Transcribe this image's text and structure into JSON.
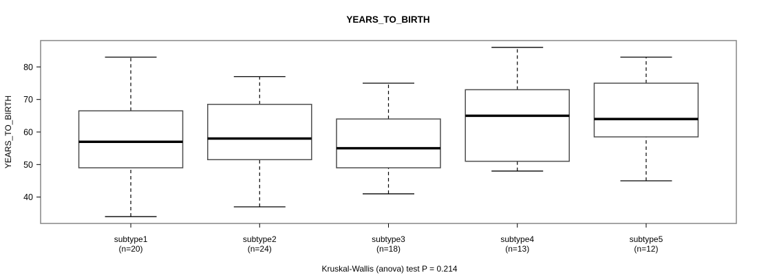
{
  "title": "YEARS_TO_BIRTH",
  "y_axis": {
    "label": "YEARS_TO_BIRTH",
    "tick_labels": [
      "40",
      "50",
      "60",
      "70",
      "80"
    ]
  },
  "caption": "Kruskal-Wallis (anova) test P = 0.214",
  "colors": {
    "frame": "#858585",
    "box_stroke": "#4d4d4d",
    "box_fill": "#ffffff",
    "whisker": "#000000",
    "median": "#000000",
    "text": "#000000",
    "background": "#ffffff"
  },
  "chart_data": {
    "type": "boxplot",
    "title": "YEARS_TO_BIRTH",
    "xlabel": "",
    "ylabel": "YEARS_TO_BIRTH",
    "categories": [
      "subtype1",
      "subtype2",
      "subtype3",
      "subtype4",
      "subtype5"
    ],
    "category_sublabels": [
      "(n=20)",
      "(n=24)",
      "(n=18)",
      "(n=13)",
      "(n=12)"
    ],
    "sample_sizes": [
      20,
      24,
      18,
      13,
      12
    ],
    "boxes": [
      {
        "name": "subtype1",
        "n": 20,
        "whisker_low": 34,
        "q1": 49,
        "median": 57,
        "q3": 66.5,
        "whisker_high": 83
      },
      {
        "name": "subtype2",
        "n": 24,
        "whisker_low": 37,
        "q1": 51.5,
        "median": 58,
        "q3": 68.5,
        "whisker_high": 77
      },
      {
        "name": "subtype3",
        "n": 18,
        "whisker_low": 41,
        "q1": 49,
        "median": 55,
        "q3": 64,
        "whisker_high": 75
      },
      {
        "name": "subtype4",
        "n": 13,
        "whisker_low": 48,
        "q1": 51,
        "median": 65,
        "q3": 73,
        "whisker_high": 86
      },
      {
        "name": "subtype5",
        "n": 12,
        "whisker_low": 45,
        "q1": 58.5,
        "median": 64,
        "q3": 75,
        "whisker_high": 83
      }
    ],
    "yticks": [
      40,
      50,
      60,
      70,
      80
    ],
    "ylim": [
      31.9,
      88.1
    ],
    "grid": false,
    "legend": "none",
    "annotation": "Kruskal-Wallis (anova) test P = 0.214"
  }
}
